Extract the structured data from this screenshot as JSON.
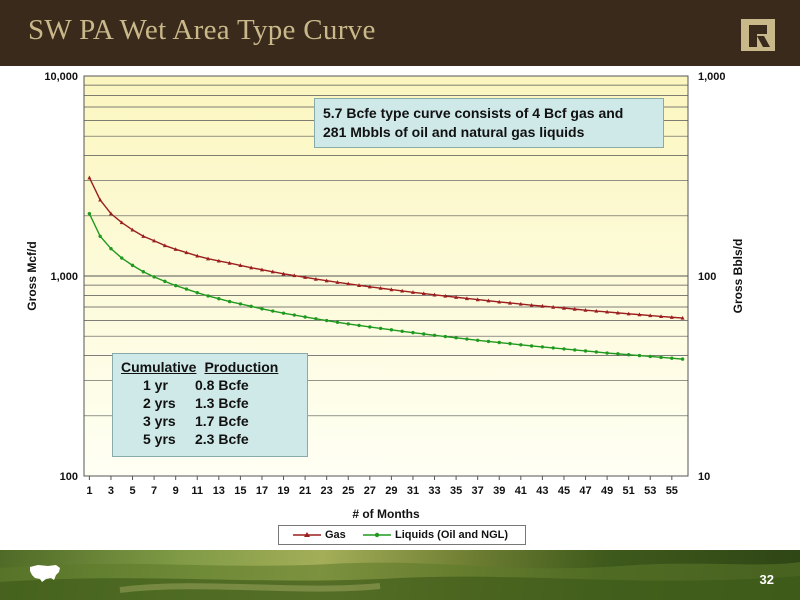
{
  "header": {
    "title": "SW PA Wet Area Type Curve"
  },
  "annotation": {
    "line1": "5.7 Bcfe type curve consists of 4 Bcf gas and",
    "line2": "281 Mbbls of oil and natural gas liquids"
  },
  "cumulative": {
    "heading_left": "Cumulative",
    "heading_right": "Production",
    "rows": [
      {
        "period": "1 yr",
        "value": "0.8 Bcfe"
      },
      {
        "period": "2 yrs",
        "value": "1.3 Bcfe"
      },
      {
        "period": "3 yrs",
        "value": "1.7 Bcfe"
      },
      {
        "period": "5 yrs",
        "value": "2.3 Bcfe"
      }
    ]
  },
  "footer": {
    "page_number": "32"
  },
  "colors": {
    "header_bg": "#3a2a1c",
    "title_color": "#c9b98a",
    "plot_bg": "#fdfbd8",
    "gas": "#9b1f1f",
    "liquids": "#1f9a1f"
  },
  "chart_data": {
    "type": "line",
    "xlabel": "# of Months",
    "ylabel_left": "Gross Mcf/d",
    "ylabel_right": "Gross Bbls/d",
    "y_left_scale": "log",
    "y_left_range": [
      100,
      10000
    ],
    "y_right_scale": "log",
    "y_right_range": [
      10,
      1000
    ],
    "x_range": [
      1,
      56
    ],
    "x_ticks": [
      "1",
      "3",
      "5",
      "7",
      "9",
      "11",
      "13",
      "15",
      "17",
      "19",
      "21",
      "23",
      "25",
      "27",
      "29",
      "31",
      "33",
      "35",
      "37",
      "39",
      "41",
      "43",
      "45",
      "47",
      "49",
      "51",
      "53",
      "55"
    ],
    "y_left_ticks": [
      "100",
      "1,000",
      "10,000"
    ],
    "y_right_ticks": [
      "10",
      "100",
      "1,000"
    ],
    "grid": true,
    "legend_position": "bottom",
    "x": [
      1,
      2,
      3,
      4,
      5,
      6,
      7,
      8,
      9,
      10,
      11,
      12,
      13,
      14,
      15,
      16,
      17,
      18,
      19,
      20,
      21,
      22,
      23,
      24,
      25,
      26,
      27,
      28,
      29,
      30,
      31,
      32,
      33,
      34,
      35,
      36,
      37,
      38,
      39,
      40,
      41,
      42,
      43,
      44,
      45,
      46,
      47,
      48,
      49,
      50,
      51,
      52,
      53,
      54,
      55,
      56
    ],
    "series": [
      {
        "name": "Gas",
        "axis": "left",
        "values": [
          3100,
          2400,
          2050,
          1850,
          1700,
          1580,
          1500,
          1420,
          1360,
          1310,
          1260,
          1220,
          1190,
          1160,
          1130,
          1100,
          1075,
          1050,
          1025,
          1005,
          985,
          965,
          947,
          930,
          914,
          898,
          883,
          869,
          855,
          842,
          829,
          817,
          805,
          794,
          783,
          772,
          762,
          752,
          742,
          733,
          724,
          715,
          707,
          699,
          691,
          683,
          675,
          668,
          661,
          654,
          647,
          641,
          634,
          628,
          622,
          616
        ]
      },
      {
        "name": "Liquids (Oil and NGL)",
        "axis": "right",
        "values": [
          205,
          158,
          137,
          123,
          113,
          105,
          99,
          94,
          89.5,
          86,
          82.5,
          79.5,
          77,
          74.5,
          72.5,
          70.5,
          68.5,
          66.8,
          65.2,
          63.8,
          62.4,
          61.1,
          59.9,
          58.7,
          57.6,
          56.6,
          55.6,
          54.7,
          53.8,
          52.9,
          52.1,
          51.3,
          50.5,
          49.8,
          49.1,
          48.4,
          47.7,
          47.1,
          46.5,
          45.9,
          45.3,
          44.7,
          44.2,
          43.7,
          43.2,
          42.7,
          42.2,
          41.7,
          41.2,
          40.8,
          40.4,
          40.0,
          39.6,
          39.2,
          38.8,
          38.4
        ]
      }
    ]
  }
}
